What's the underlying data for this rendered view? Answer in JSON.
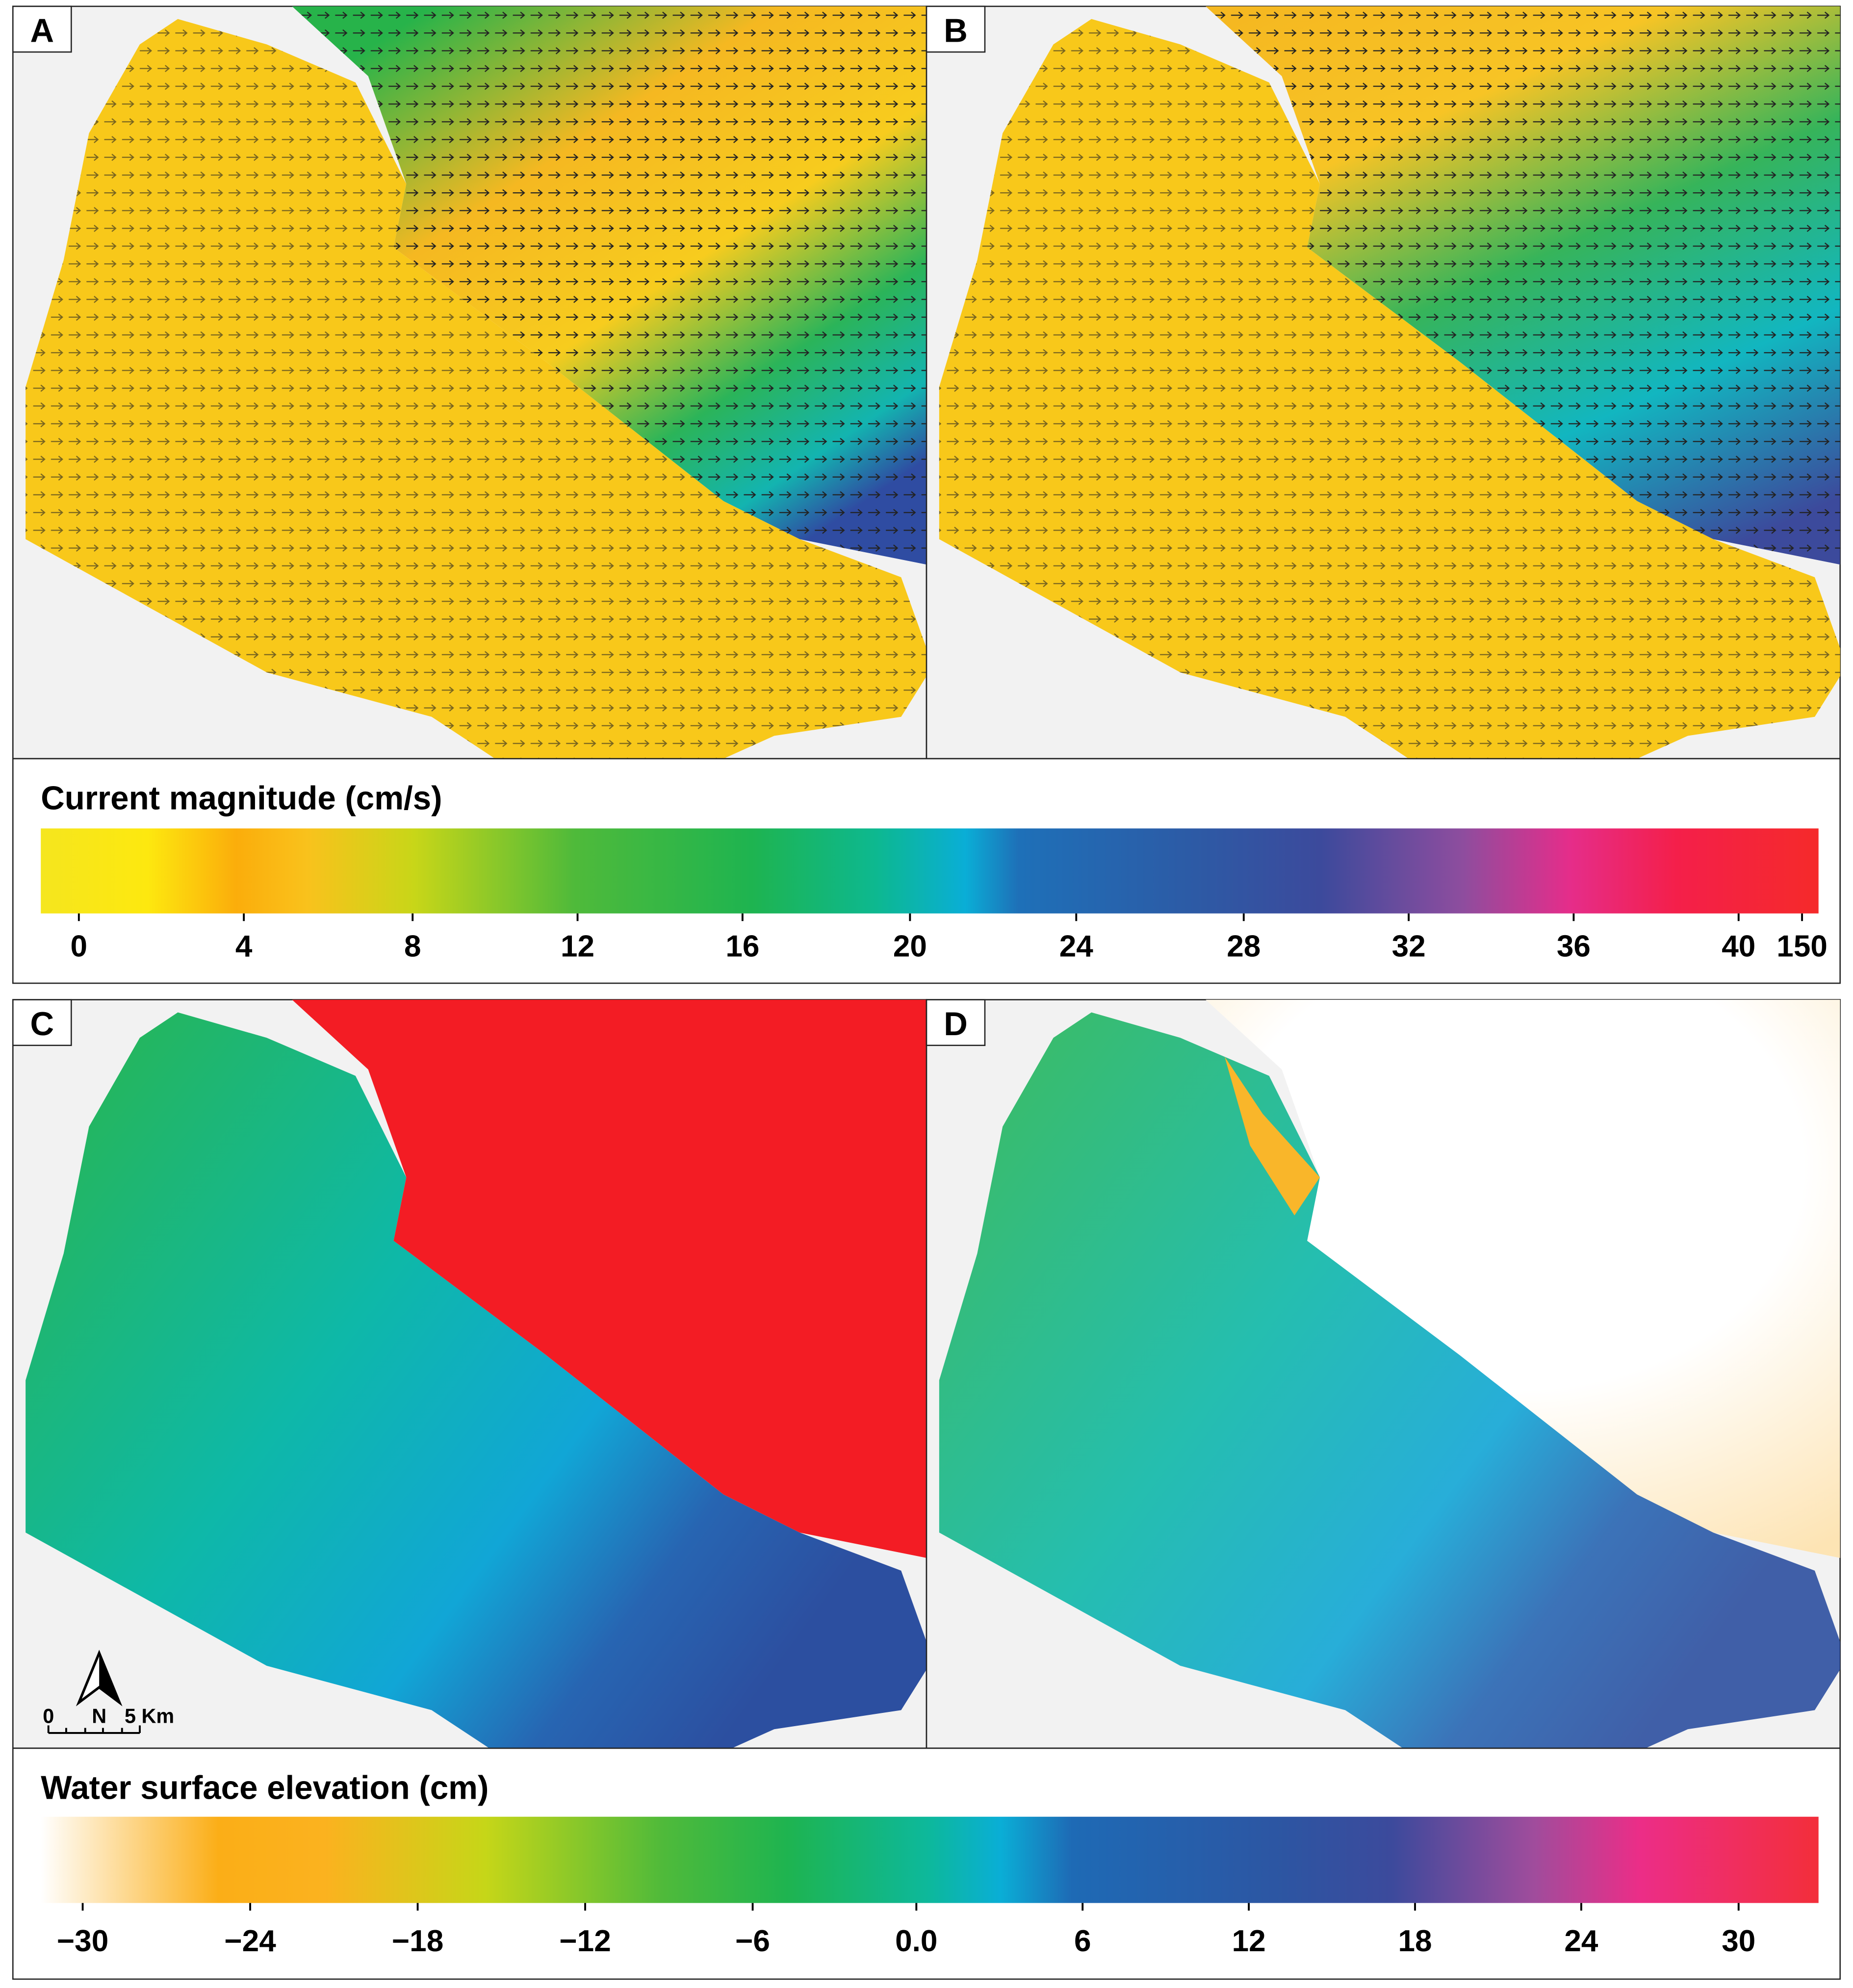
{
  "panels": [
    {
      "label": "A"
    },
    {
      "label": "B"
    },
    {
      "label": "C"
    },
    {
      "label": "D"
    }
  ],
  "current_legend": {
    "title": "Current magnitude (cm/s)",
    "ticks": [
      "0",
      "4",
      "8",
      "12",
      "16",
      "20",
      "24",
      "28",
      "32",
      "36",
      "40",
      "150"
    ]
  },
  "elevation_legend": {
    "title": "Water surface elevation (cm)",
    "ticks": [
      "−30",
      "−24",
      "−18",
      "−12",
      "−6",
      "0.0",
      "6",
      "12",
      "18",
      "24",
      "30"
    ]
  },
  "north_arrow": {
    "label": "N"
  },
  "scale_bar": {
    "start": "0",
    "end": "5 Km"
  }
}
